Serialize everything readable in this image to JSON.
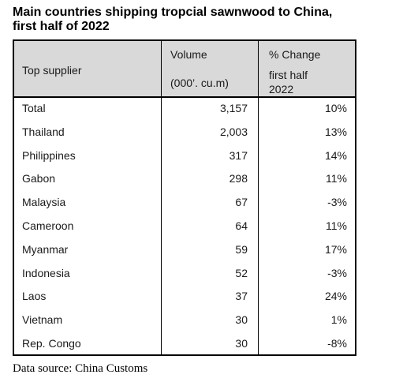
{
  "title_line1": "Main countries shipping tropcial sawnwood to China,",
  "title_line2": "first half of 2022",
  "header": {
    "supplier": "Top supplier",
    "volume_line1": "Volume",
    "volume_line2": "(000’. cu.m)",
    "change_line1": "% Change",
    "change_line2": "first half",
    "change_line3": "2022"
  },
  "rows": [
    {
      "name": "Total",
      "volume": "3,157",
      "change": "10%"
    },
    {
      "name": "Thailand",
      "volume": "2,003",
      "change": "13%"
    },
    {
      "name": "Philippines",
      "volume": "317",
      "change": "14%"
    },
    {
      "name": "Gabon",
      "volume": "298",
      "change": "11%"
    },
    {
      "name": "Malaysia",
      "volume": "67",
      "change": "-3%"
    },
    {
      "name": "Cameroon",
      "volume": "64",
      "change": "11%"
    },
    {
      "name": "Myanmar",
      "volume": "59",
      "change": "17%"
    },
    {
      "name": "Indonesia",
      "volume": "52",
      "change": "-3%"
    },
    {
      "name": "Laos",
      "volume": "37",
      "change": "24%"
    },
    {
      "name": "Vietnam",
      "volume": "30",
      "change": "1%"
    },
    {
      "name": "Rep. Congo",
      "volume": "30",
      "change": "-8%"
    }
  ],
  "source": "Data source: China Customs",
  "colors": {
    "header_bg": "#d9d9d9",
    "border": "#000000"
  }
}
